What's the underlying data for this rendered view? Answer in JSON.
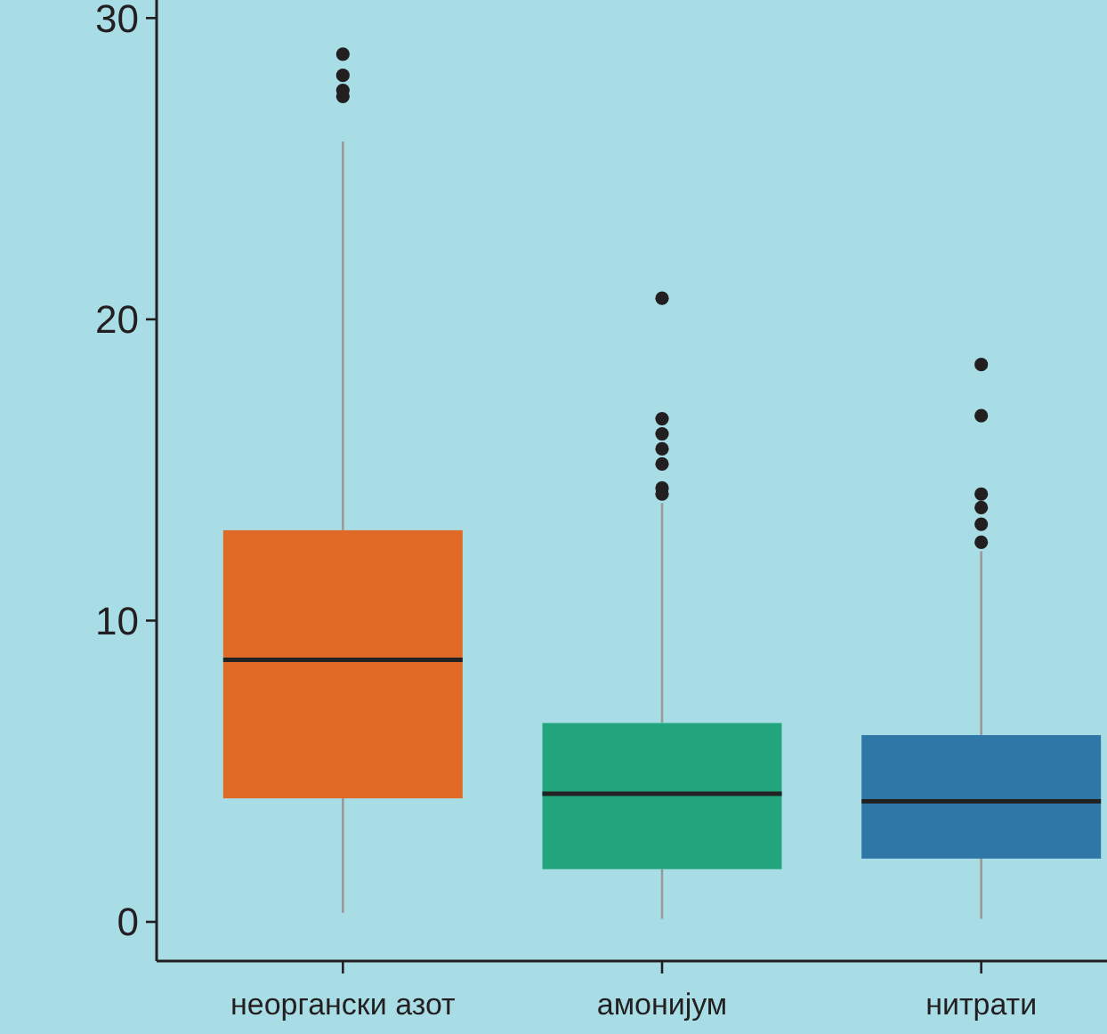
{
  "chart_data": {
    "type": "box",
    "categories": [
      "неоргански азот",
      "амонијум",
      "нитрати"
    ],
    "colors": [
      "#e06a25",
      "#22a57d",
      "#2e77a6"
    ],
    "boxes": [
      {
        "low": 0.3,
        "q1": 4.1,
        "median": 8.7,
        "q3": 13.0,
        "high": 25.9,
        "outliers": [
          28.8,
          28.1,
          27.6,
          27.4
        ]
      },
      {
        "low": 0.1,
        "q1": 1.75,
        "median": 4.25,
        "q3": 6.6,
        "high": 13.9,
        "outliers": [
          20.7,
          16.7,
          16.2,
          15.7,
          15.2,
          14.4,
          14.2
        ]
      },
      {
        "low": 0.1,
        "q1": 2.1,
        "median": 4.0,
        "q3": 6.2,
        "high": 12.3,
        "outliers": [
          18.5,
          16.8,
          14.2,
          13.75,
          13.2,
          12.6
        ]
      }
    ],
    "ylim": [
      -1.3,
      30.6
    ],
    "yticks": [
      0,
      10,
      20,
      30
    ]
  }
}
